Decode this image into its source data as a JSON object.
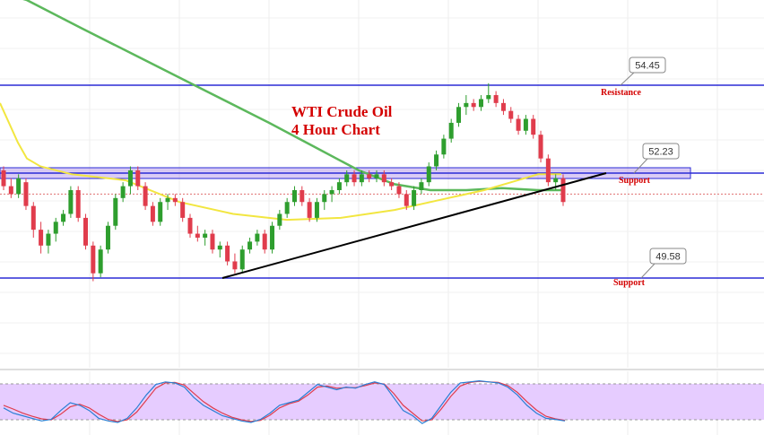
{
  "chart_data": {
    "type": "candlestick",
    "title_line1": "WTI Crude Oil",
    "title_line2": "4 Hour Chart",
    "colors": {
      "up": "#2e9e2e",
      "down": "#e03c4c",
      "level_line": "#2b2bd6",
      "ma_fast": "#f2e640",
      "ma_slow": "#5cb85c",
      "trendline": "#000000",
      "current_price": "#e07070",
      "support_band": "#b08ee8",
      "oscillator_bg": "#e6ccff",
      "osc_k": "#2a7fd4",
      "osc_d": "#e03c4c",
      "label_text": "#d40000"
    },
    "levels": [
      {
        "name": "resistance",
        "label": "Resistance",
        "tag": "54.45",
        "price": 54.45
      },
      {
        "name": "support-upper",
        "label": "Support",
        "tag": "52.23",
        "price": 52.23
      },
      {
        "name": "support-lower",
        "label": "Support",
        "tag": "49.58",
        "price": 49.58
      }
    ],
    "candles": [
      [
        52.3,
        52.4,
        51.8,
        51.9
      ],
      [
        51.9,
        52.1,
        51.6,
        51.7
      ],
      [
        51.7,
        52.2,
        51.6,
        52.1
      ],
      [
        52.0,
        52.1,
        51.3,
        51.4
      ],
      [
        51.4,
        51.5,
        50.6,
        50.8
      ],
      [
        50.8,
        51.0,
        50.2,
        50.4
      ],
      [
        50.4,
        50.8,
        50.2,
        50.7
      ],
      [
        50.7,
        51.1,
        50.5,
        51.0
      ],
      [
        51.0,
        51.3,
        50.9,
        51.2
      ],
      [
        51.2,
        51.9,
        51.1,
        51.8
      ],
      [
        51.8,
        51.9,
        51.0,
        51.1
      ],
      [
        51.1,
        51.2,
        50.3,
        50.4
      ],
      [
        50.4,
        50.5,
        49.5,
        49.7
      ],
      [
        49.7,
        50.4,
        49.6,
        50.3
      ],
      [
        50.3,
        51.0,
        50.2,
        50.9
      ],
      [
        50.9,
        51.7,
        50.8,
        51.6
      ],
      [
        51.6,
        52.0,
        51.5,
        51.9
      ],
      [
        51.9,
        52.4,
        51.7,
        52.3
      ],
      [
        52.3,
        52.4,
        51.8,
        51.9
      ],
      [
        51.9,
        52.0,
        51.3,
        51.4
      ],
      [
        51.4,
        51.5,
        50.9,
        51.0
      ],
      [
        51.0,
        51.6,
        50.9,
        51.5
      ],
      [
        51.5,
        51.7,
        51.3,
        51.6
      ],
      [
        51.6,
        51.7,
        51.4,
        51.5
      ],
      [
        51.5,
        51.6,
        51.0,
        51.1
      ],
      [
        51.1,
        51.2,
        50.6,
        50.7
      ],
      [
        50.7,
        50.9,
        50.5,
        50.6
      ],
      [
        50.6,
        50.8,
        50.4,
        50.7
      ],
      [
        50.7,
        50.8,
        50.2,
        50.3
      ],
      [
        50.3,
        50.5,
        50.1,
        50.4
      ],
      [
        50.4,
        50.5,
        49.9,
        50.0
      ],
      [
        50.0,
        50.2,
        49.7,
        49.8
      ],
      [
        49.8,
        50.4,
        49.7,
        50.3
      ],
      [
        50.3,
        50.6,
        50.2,
        50.5
      ],
      [
        50.5,
        50.8,
        50.4,
        50.7
      ],
      [
        50.7,
        50.8,
        50.2,
        50.3
      ],
      [
        50.3,
        51.0,
        50.2,
        50.9
      ],
      [
        50.9,
        51.3,
        50.8,
        51.2
      ],
      [
        51.2,
        51.6,
        51.1,
        51.5
      ],
      [
        51.5,
        51.9,
        51.4,
        51.8
      ],
      [
        51.8,
        51.9,
        51.4,
        51.5
      ],
      [
        51.5,
        51.6,
        51.0,
        51.1
      ],
      [
        51.1,
        51.6,
        51.0,
        51.5
      ],
      [
        51.5,
        51.8,
        51.3,
        51.7
      ],
      [
        51.7,
        51.9,
        51.5,
        51.8
      ],
      [
        51.8,
        52.1,
        51.7,
        52.0
      ],
      [
        52.0,
        52.3,
        51.9,
        52.2
      ],
      [
        52.2,
        52.3,
        51.9,
        52.0
      ],
      [
        52.0,
        52.3,
        51.9,
        52.2
      ],
      [
        52.2,
        52.3,
        52.0,
        52.1
      ],
      [
        52.1,
        52.3,
        52.0,
        52.2
      ],
      [
        52.2,
        52.3,
        51.9,
        52.0
      ],
      [
        52.0,
        52.1,
        51.8,
        51.9
      ],
      [
        51.9,
        52.0,
        51.6,
        51.7
      ],
      [
        51.7,
        51.8,
        51.3,
        51.4
      ],
      [
        51.4,
        51.9,
        51.3,
        51.8
      ],
      [
        51.8,
        52.1,
        51.7,
        52.0
      ],
      [
        52.0,
        52.5,
        51.9,
        52.4
      ],
      [
        52.4,
        52.8,
        52.3,
        52.7
      ],
      [
        52.7,
        53.2,
        52.6,
        53.1
      ],
      [
        53.1,
        53.6,
        53.0,
        53.5
      ],
      [
        53.5,
        54.0,
        53.4,
        53.9
      ],
      [
        53.9,
        54.2,
        53.7,
        54.0
      ],
      [
        54.0,
        54.1,
        53.8,
        53.9
      ],
      [
        53.9,
        54.2,
        53.8,
        54.1
      ],
      [
        54.1,
        54.5,
        54.0,
        54.2
      ],
      [
        54.2,
        54.3,
        53.9,
        54.0
      ],
      [
        54.0,
        54.1,
        53.7,
        53.8
      ],
      [
        53.8,
        53.9,
        53.5,
        53.6
      ],
      [
        53.6,
        53.7,
        53.2,
        53.3
      ],
      [
        53.3,
        53.7,
        53.2,
        53.6
      ],
      [
        53.6,
        53.7,
        53.1,
        53.2
      ],
      [
        53.2,
        53.3,
        52.5,
        52.6
      ],
      [
        52.6,
        52.7,
        51.9,
        52.0
      ],
      [
        52.0,
        52.2,
        51.8,
        52.1
      ],
      [
        52.1,
        52.2,
        51.4,
        51.5
      ]
    ],
    "ma_fast": [
      [
        0,
        54.0
      ],
      [
        20,
        53.0
      ],
      [
        30,
        52.6
      ],
      [
        45,
        52.4
      ],
      [
        80,
        52.2
      ],
      [
        140,
        52.05
      ],
      [
        200,
        51.5
      ],
      [
        260,
        51.2
      ],
      [
        320,
        51.05
      ],
      [
        380,
        51.1
      ],
      [
        440,
        51.3
      ],
      [
        500,
        51.6
      ],
      [
        540,
        51.8
      ],
      [
        570,
        52.0
      ],
      [
        600,
        52.2
      ],
      [
        626,
        52.2
      ]
    ],
    "ma_slow": [
      [
        0,
        56.8
      ],
      [
        30,
        56.6
      ],
      [
        90,
        55.9
      ],
      [
        160,
        55.1
      ],
      [
        230,
        54.3
      ],
      [
        300,
        53.5
      ],
      [
        350,
        52.9
      ],
      [
        400,
        52.3
      ],
      [
        440,
        51.95
      ],
      [
        480,
        51.8
      ],
      [
        520,
        51.8
      ],
      [
        560,
        51.85
      ],
      [
        600,
        51.8
      ],
      [
        626,
        51.8
      ]
    ],
    "trendline": {
      "start": [
        248,
        49.58
      ],
      "end": [
        676,
        52.23
      ]
    },
    "current_price": 51.7,
    "oscillator": {
      "k": [
        40,
        30,
        25,
        20,
        15,
        18,
        35,
        50,
        45,
        35,
        20,
        15,
        12,
        20,
        40,
        65,
        85,
        90,
        88,
        80,
        60,
        45,
        35,
        25,
        20,
        15,
        12,
        18,
        30,
        45,
        50,
        55,
        70,
        85,
        80,
        75,
        80,
        78,
        85,
        90,
        85,
        60,
        35,
        25,
        10,
        20,
        45,
        70,
        88,
        90,
        92,
        90,
        88,
        80,
        65,
        45,
        30,
        20,
        18,
        15
      ],
      "d": [
        45,
        38,
        30,
        24,
        19,
        17,
        28,
        42,
        47,
        40,
        28,
        18,
        14,
        17,
        32,
        55,
        78,
        88,
        89,
        84,
        68,
        52,
        40,
        30,
        22,
        17,
        14,
        16,
        26,
        40,
        48,
        53,
        65,
        80,
        82,
        78,
        79,
        79,
        83,
        88,
        86,
        68,
        45,
        30,
        15,
        17,
        38,
        62,
        82,
        89,
        91,
        90,
        89,
        83,
        70,
        52,
        36,
        24,
        19,
        16
      ]
    },
    "xlabel": "",
    "ylabel": "",
    "grid": true
  }
}
